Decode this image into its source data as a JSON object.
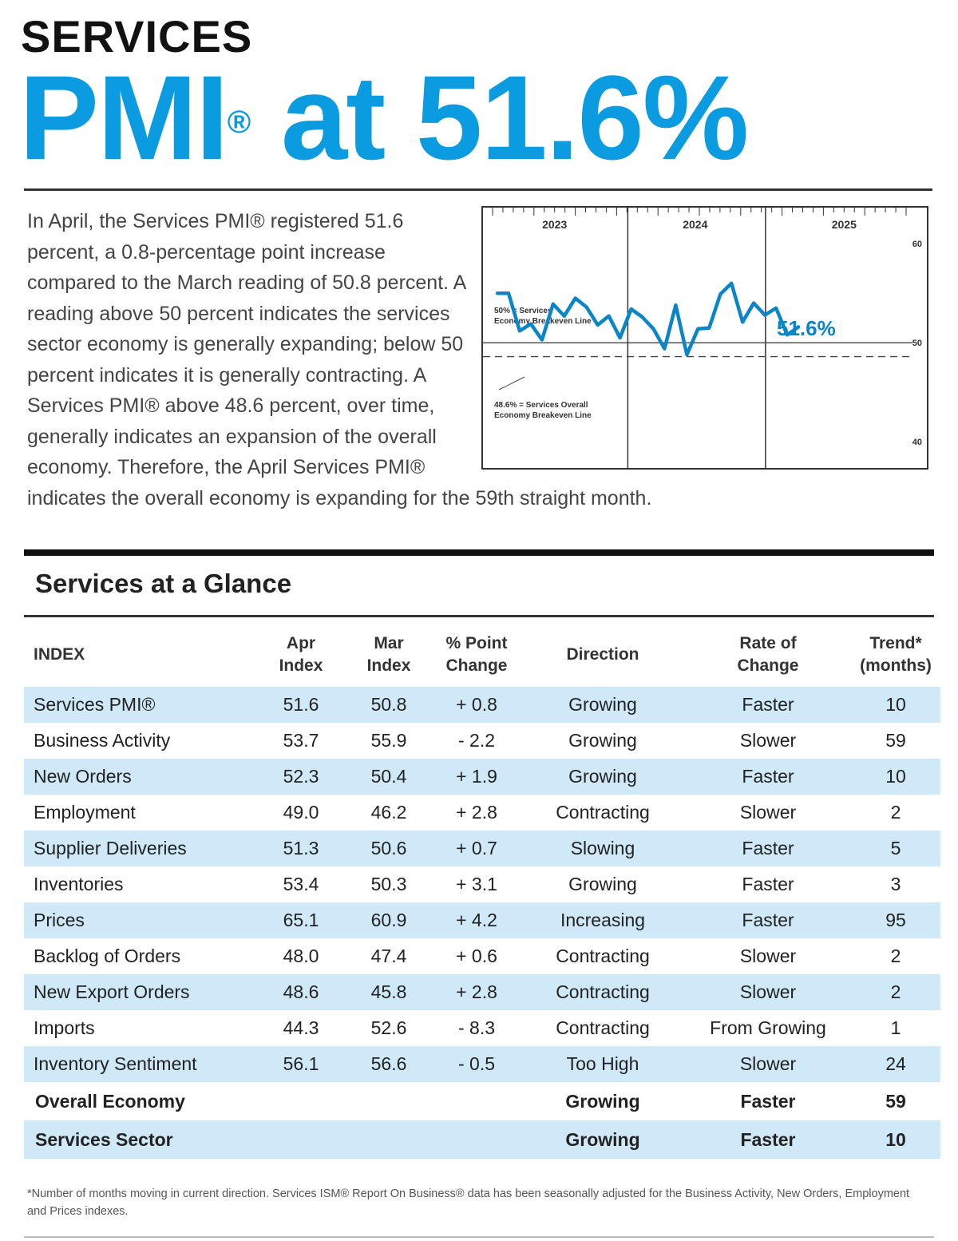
{
  "header": {
    "kicker": "SERVICES",
    "headline_pre": "PMI",
    "headline_reg": "®",
    "headline_post": " at 51.6%"
  },
  "summary": {
    "text": "In April, the Services PMI® registered 51.6 percent, a 0.8-percentage point increase compared to the March reading of 50.8 percent. A reading above 50 percent indicates the services sector economy is generally expanding; below 50 percent indicates it is generally contracting. A Services PMI® above 48.6 percent, over time, generally indicates an expansion of the overall economy. Therefore, the April Services PMI® indicates the overall economy is expanding for the 59th straight month."
  },
  "chart_data": {
    "type": "line",
    "title": "",
    "xlabel": "",
    "ylabel": "",
    "year_labels": [
      "2023",
      "2024",
      "2025"
    ],
    "ylim": [
      38,
      63
    ],
    "yticks": [
      40,
      50,
      60
    ],
    "current_label": "51.6%",
    "reference_lines": [
      {
        "value": 50,
        "label": "50% = Services Economy Breakeven Line",
        "style": "solid"
      },
      {
        "value": 48.6,
        "label": "48.6% = Services Overall Economy Breakeven Line",
        "style": "dashed"
      }
    ],
    "series": [
      {
        "color": "#0a86c8",
        "x": [
          "2023-01",
          "2023-02",
          "2023-03",
          "2023-04",
          "2023-05",
          "2023-06",
          "2023-07",
          "2023-08",
          "2023-09",
          "2023-10",
          "2023-11",
          "2023-12",
          "2024-01",
          "2024-02",
          "2024-03",
          "2024-04",
          "2024-05",
          "2024-06",
          "2024-07",
          "2024-08",
          "2024-09",
          "2024-10",
          "2024-11",
          "2024-12",
          "2025-01",
          "2025-02",
          "2025-03",
          "2025-04"
        ],
        "values": [
          55.0,
          55.0,
          51.2,
          51.9,
          50.3,
          53.9,
          52.7,
          54.5,
          53.6,
          51.8,
          52.7,
          50.5,
          53.4,
          52.6,
          51.4,
          49.4,
          53.8,
          48.8,
          51.4,
          51.5,
          54.9,
          56.0,
          52.1,
          54.0,
          52.8,
          53.5,
          50.8,
          51.6
        ]
      }
    ]
  },
  "section": {
    "title": "Services at a Glance"
  },
  "table": {
    "headers": {
      "index": "INDEX",
      "apr_1": "Apr",
      "apr_2": "Index",
      "mar_1": "Mar",
      "mar_2": "Index",
      "chg_1": "% Point",
      "chg_2": "Change",
      "direction": "Direction",
      "rate_1": "Rate of",
      "rate_2": "Change",
      "trend_1": "Trend*",
      "trend_2": "(months)"
    },
    "rows": [
      {
        "name": "Services PMI®",
        "apr": "51.6",
        "mar": "50.8",
        "change": "+ 0.8",
        "direction": "Growing",
        "rate": "Faster",
        "trend": "10"
      },
      {
        "name": "Business Activity",
        "apr": "53.7",
        "mar": "55.9",
        "change": "- 2.2",
        "direction": "Growing",
        "rate": "Slower",
        "trend": "59"
      },
      {
        "name": "New Orders",
        "apr": "52.3",
        "mar": "50.4",
        "change": "+ 1.9",
        "direction": "Growing",
        "rate": "Faster",
        "trend": "10"
      },
      {
        "name": "Employment",
        "apr": "49.0",
        "mar": "46.2",
        "change": "+ 2.8",
        "direction": "Contracting",
        "rate": "Slower",
        "trend": "2"
      },
      {
        "name": "Supplier Deliveries",
        "apr": "51.3",
        "mar": "50.6",
        "change": "+ 0.7",
        "direction": "Slowing",
        "rate": "Faster",
        "trend": "5"
      },
      {
        "name": "Inventories",
        "apr": "53.4",
        "mar": "50.3",
        "change": "+ 3.1",
        "direction": "Growing",
        "rate": "Faster",
        "trend": "3"
      },
      {
        "name": "Prices",
        "apr": "65.1",
        "mar": "60.9",
        "change": "+ 4.2",
        "direction": "Increasing",
        "rate": "Faster",
        "trend": "95"
      },
      {
        "name": "Backlog of Orders",
        "apr": "48.0",
        "mar": "47.4",
        "change": "+ 0.6",
        "direction": "Contracting",
        "rate": "Slower",
        "trend": "2"
      },
      {
        "name": "New Export Orders",
        "apr": "48.6",
        "mar": "45.8",
        "change": "+ 2.8",
        "direction": "Contracting",
        "rate": "Slower",
        "trend": "2"
      },
      {
        "name": "Imports",
        "apr": "44.3",
        "mar": "52.6",
        "change": "- 8.3",
        "direction": "Contracting",
        "rate": "From Growing",
        "trend": "1"
      },
      {
        "name": "Inventory Sentiment",
        "apr": "56.1",
        "mar": "56.6",
        "change": "- 0.5",
        "direction": "Too High",
        "rate": "Slower",
        "trend": "24"
      }
    ],
    "totals": [
      {
        "name": "Overall Economy",
        "direction": "Growing",
        "rate": "Faster",
        "trend": "59"
      },
      {
        "name": "Services Sector",
        "direction": "Growing",
        "rate": "Faster",
        "trend": "10"
      }
    ]
  },
  "footnote": "*Number of months moving in current direction. Services ISM® Report On Business® data has been seasonally adjusted for the Business Activity, New Orders, Employment and Prices indexes."
}
